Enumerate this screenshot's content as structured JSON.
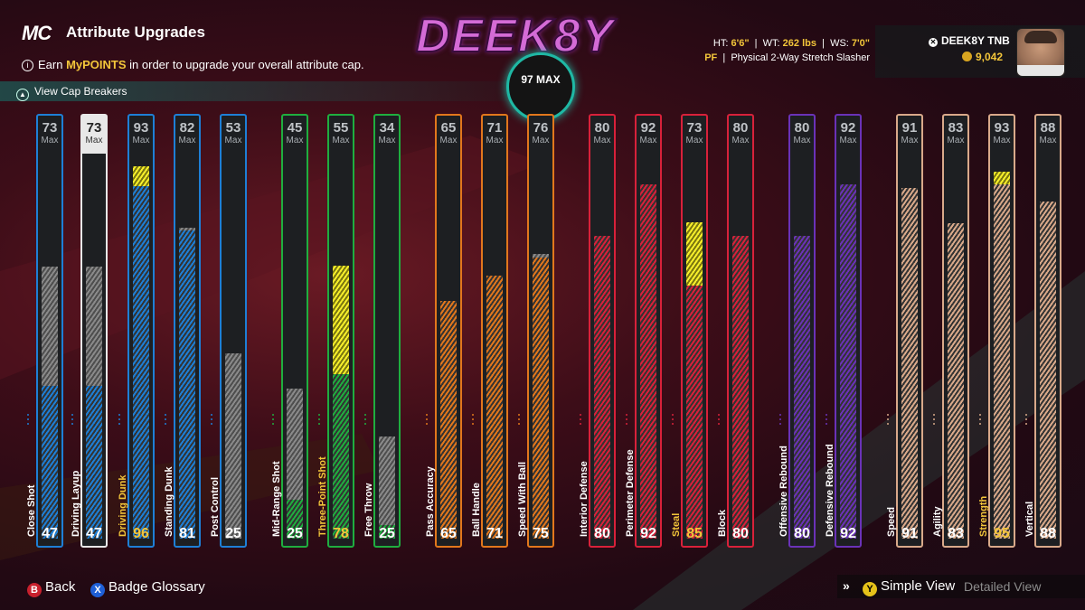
{
  "header": {
    "logo": "MC",
    "title": "Attribute Upgrades",
    "earn_prefix": "Earn ",
    "earn_highlight": "MyPOINTS",
    "earn_suffix": " in order to upgrade your overall attribute cap.",
    "cap_breakers": "View Cap Breakers",
    "player_art_name": "DEEK8Y",
    "max_badge": "97 MAX"
  },
  "vitals": {
    "ht_label": "HT:",
    "ht": "6'6\"",
    "wt_label": "WT:",
    "wt": "262 lbs",
    "ws_label": "WS:",
    "ws": "7'0\"",
    "position": "PF",
    "archetype": "Physical 2-Way Stretch Slasher"
  },
  "profile": {
    "gamertag": "DEEK8Y TNB",
    "vc": "9,042"
  },
  "colors": {
    "inside": "#1e7fd6",
    "shooting": "#1fae3f",
    "playmaking": "#e2771c",
    "defense": "#d8213a",
    "rebounding": "#6a32b8",
    "physical": "#d9a98a",
    "upgrade": "#f7ef2b",
    "highlight_text": "#f3c63a"
  },
  "attributes": [
    {
      "name": "Close Shot",
      "category": "inside",
      "max": "73",
      "value": "47",
      "upgrade_to": null,
      "highlight": false
    },
    {
      "name": "Driving Layup",
      "category": "inside",
      "max": "73",
      "value": "47",
      "upgrade_to": null,
      "highlight": false,
      "selected": true
    },
    {
      "name": "Driving Dunk",
      "category": "inside",
      "max": "93",
      "value": "96",
      "upgrade_to": 96,
      "highlight": true
    },
    {
      "name": "Standing Dunk",
      "category": "inside",
      "max": "82",
      "value": "81",
      "upgrade_to": null,
      "highlight": false
    },
    {
      "name": "Post Control",
      "category": "inside",
      "max": "53",
      "value": "25",
      "upgrade_to": null,
      "highlight": false
    },
    {
      "name": "Mid-Range Shot",
      "category": "shooting",
      "max": "45",
      "value": "25",
      "upgrade_to": null,
      "highlight": false
    },
    {
      "name": "Three-Point Shot",
      "category": "shooting",
      "max": "55",
      "value": "78",
      "upgrade_to": 78,
      "highlight": true
    },
    {
      "name": "Free Throw",
      "category": "shooting",
      "max": "34",
      "value": "25",
      "upgrade_to": null,
      "highlight": false
    },
    {
      "name": "Pass Accuracy",
      "category": "playmaking",
      "max": "65",
      "value": "65",
      "upgrade_to": null,
      "highlight": false
    },
    {
      "name": "Ball Handle",
      "category": "playmaking",
      "max": "71",
      "value": "71",
      "upgrade_to": null,
      "highlight": false
    },
    {
      "name": "Speed With Ball",
      "category": "playmaking",
      "max": "76",
      "value": "75",
      "upgrade_to": null,
      "highlight": false
    },
    {
      "name": "Interior Defense",
      "category": "defense",
      "max": "80",
      "value": "80",
      "upgrade_to": null,
      "highlight": false
    },
    {
      "name": "Perimeter Defense",
      "category": "defense",
      "max": "92",
      "value": "92",
      "upgrade_to": null,
      "highlight": false
    },
    {
      "name": "Steal",
      "category": "defense",
      "max": "73",
      "value": "85",
      "upgrade_to": 85,
      "highlight": true
    },
    {
      "name": "Block",
      "category": "defense",
      "max": "80",
      "value": "80",
      "upgrade_to": null,
      "highlight": false
    },
    {
      "name": "Offensive Rebound",
      "category": "rebounding",
      "max": "80",
      "value": "80",
      "upgrade_to": null,
      "highlight": false
    },
    {
      "name": "Defensive Rebound",
      "category": "rebounding",
      "max": "92",
      "value": "92",
      "upgrade_to": null,
      "highlight": false
    },
    {
      "name": "Speed",
      "category": "physical",
      "max": "91",
      "value": "91",
      "upgrade_to": null,
      "highlight": false
    },
    {
      "name": "Agility",
      "category": "physical",
      "max": "83",
      "value": "83",
      "upgrade_to": null,
      "highlight": false
    },
    {
      "name": "Strength",
      "category": "physical",
      "max": "93",
      "value": "95",
      "upgrade_to": 95,
      "highlight": true
    },
    {
      "name": "Vertical",
      "category": "physical",
      "max": "88",
      "value": "88",
      "upgrade_to": null,
      "highlight": false
    }
  ],
  "max_label": "Max",
  "footer": {
    "back_btn": "B",
    "back": "Back",
    "glossary_btn": "X",
    "glossary": "Badge Glossary",
    "view_btn": "Y",
    "simple_view": "Simple View",
    "detailed_view": "Detailed View"
  }
}
